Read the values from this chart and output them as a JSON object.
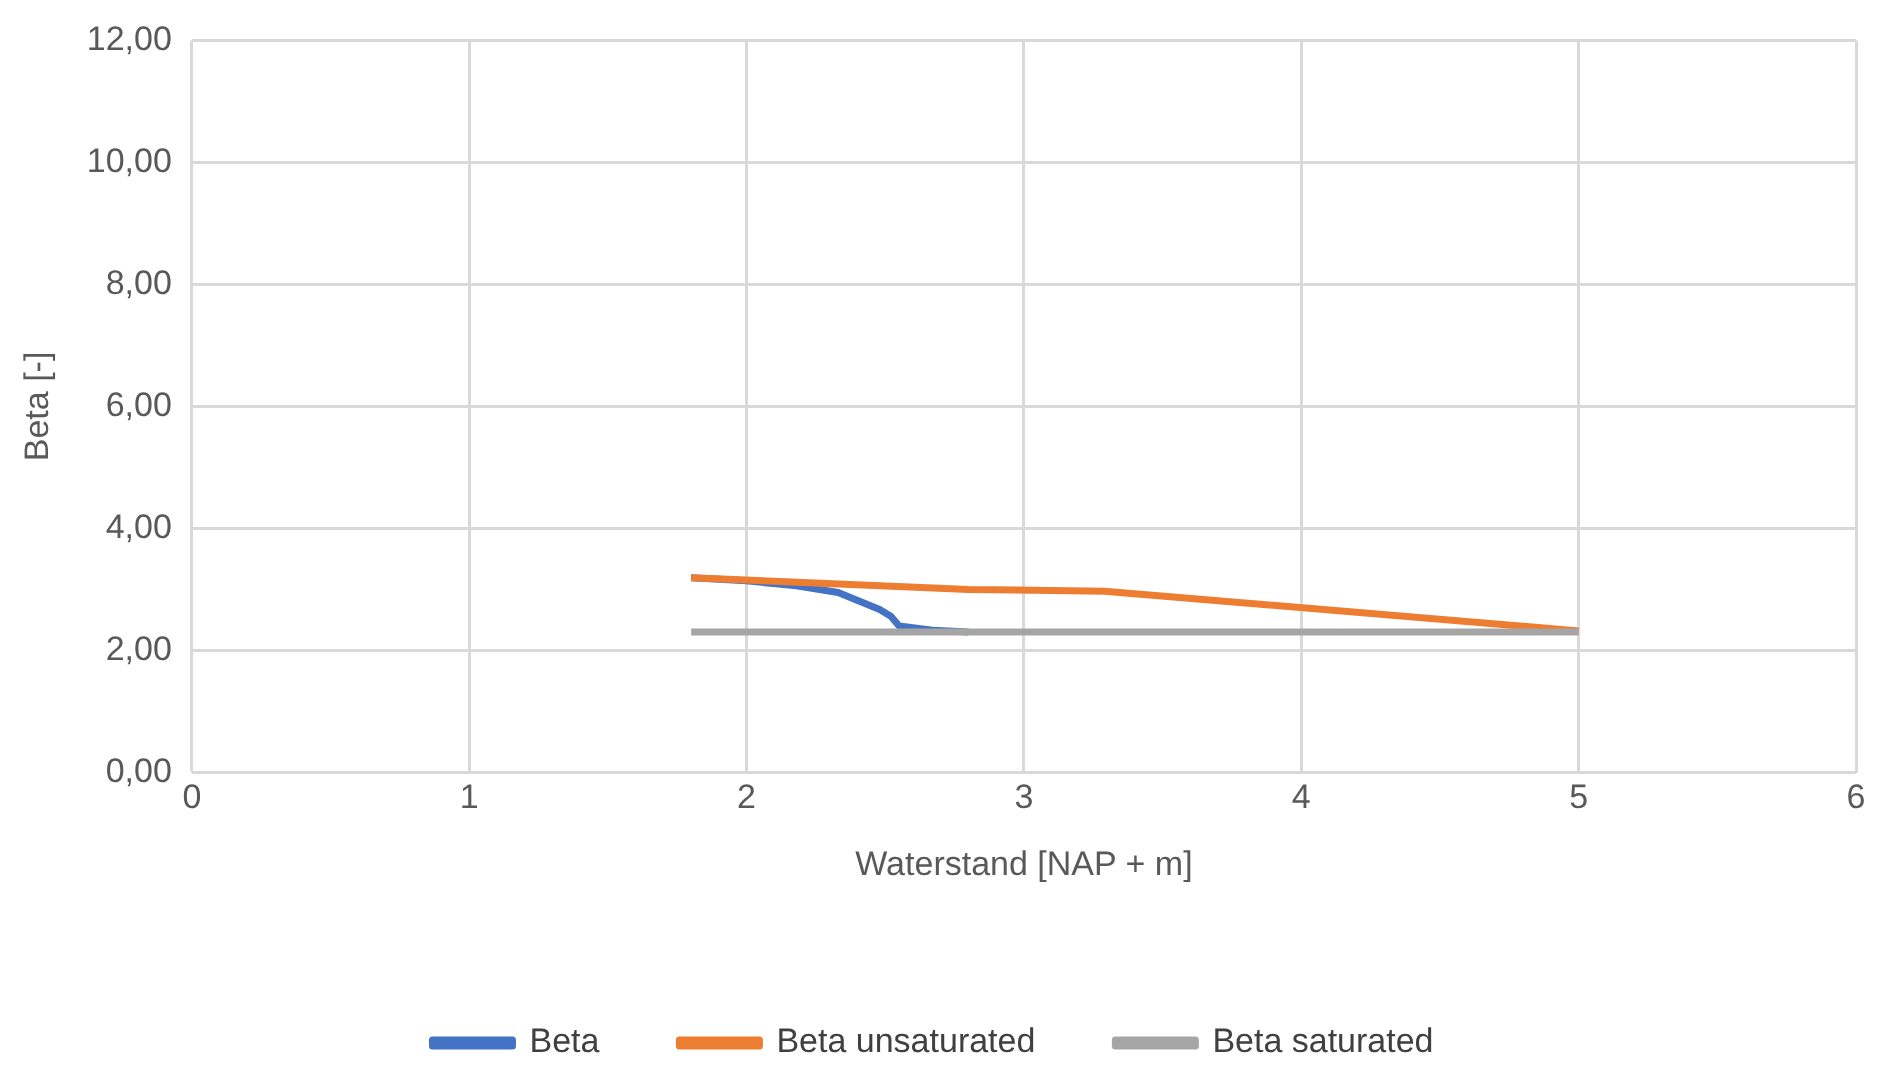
{
  "chart_data": {
    "type": "line",
    "xlabel": "Waterstand [NAP + m]",
    "ylabel": "Beta [-]",
    "xlim": [
      0,
      6
    ],
    "xticks": [
      0,
      1,
      2,
      3,
      4,
      5,
      6
    ],
    "ylim": [
      0,
      12
    ],
    "yticks": [
      {
        "value": 0,
        "label": "0,00"
      },
      {
        "value": 2,
        "label": "2,00"
      },
      {
        "value": 4,
        "label": "4,00"
      },
      {
        "value": 6,
        "label": "6,00"
      },
      {
        "value": 8,
        "label": "8,00"
      },
      {
        "value": 10,
        "label": "10,00"
      },
      {
        "value": 12,
        "label": "12,00"
      }
    ],
    "grid": true,
    "legend": "bottom",
    "marker": "none",
    "line_style": "solid",
    "series": [
      {
        "name": "Beta",
        "color": "#4472c4",
        "x": [
          1.8,
          2.0,
          2.18,
          2.33,
          2.48,
          2.52,
          2.55,
          2.67,
          2.8
        ],
        "values": [
          3.19,
          3.14,
          3.06,
          2.95,
          2.67,
          2.56,
          2.4,
          2.33,
          2.3
        ]
      },
      {
        "name": "Beta unsaturated",
        "color": "#ed7d31",
        "x": [
          1.8,
          2.8,
          3.29,
          5.0
        ],
        "values": [
          3.19,
          3.0,
          2.97,
          2.32
        ]
      },
      {
        "name": "Beta saturated",
        "color": "#a5a5a5",
        "x": [
          1.8,
          5.0
        ],
        "values": [
          2.3,
          2.3
        ]
      }
    ]
  }
}
